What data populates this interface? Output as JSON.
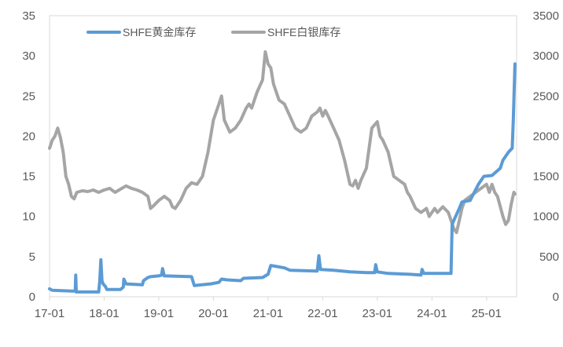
{
  "chart_data": {
    "type": "line",
    "x_ticks": [
      "17-01",
      "18-01",
      "19-01",
      "20-01",
      "21-01",
      "22-01",
      "23-01",
      "24-01",
      "25-01"
    ],
    "y_left": {
      "min": 0,
      "max": 35,
      "step": 5,
      "ticks": [
        "0",
        "5",
        "10",
        "15",
        "20",
        "25",
        "30",
        "35"
      ]
    },
    "y_right": {
      "min": 0,
      "max": 3500,
      "step": 500,
      "ticks": [
        "0",
        "500",
        "1000",
        "1500",
        "2000",
        "2500",
        "3000",
        "3500"
      ]
    },
    "x_range": [
      2017.0,
      2025.55
    ],
    "legend_placement": "top-left",
    "series": [
      {
        "name": "SHFE黄金库存",
        "axis": "left",
        "color": "#5B9BD5",
        "points": [
          [
            2017.0,
            1.0
          ],
          [
            2017.05,
            0.8
          ],
          [
            2017.4,
            0.7
          ],
          [
            2017.47,
            0.7
          ],
          [
            2017.48,
            2.7
          ],
          [
            2017.49,
            0.6
          ],
          [
            2017.9,
            0.6
          ],
          [
            2017.92,
            2.0
          ],
          [
            2017.94,
            4.6
          ],
          [
            2017.96,
            2.0
          ],
          [
            2017.98,
            1.6
          ],
          [
            2018.02,
            1.3
          ],
          [
            2018.05,
            0.9
          ],
          [
            2018.3,
            0.9
          ],
          [
            2018.35,
            1.2
          ],
          [
            2018.36,
            2.2
          ],
          [
            2018.4,
            1.6
          ],
          [
            2018.7,
            1.5
          ],
          [
            2018.72,
            2.0
          ],
          [
            2018.8,
            2.4
          ],
          [
            2018.85,
            2.5
          ],
          [
            2019.0,
            2.6
          ],
          [
            2019.05,
            2.7
          ],
          [
            2019.07,
            3.5
          ],
          [
            2019.1,
            2.6
          ],
          [
            2019.6,
            2.5
          ],
          [
            2019.65,
            1.4
          ],
          [
            2019.95,
            1.6
          ],
          [
            2020.1,
            1.8
          ],
          [
            2020.15,
            2.2
          ],
          [
            2020.25,
            2.1
          ],
          [
            2020.5,
            2.0
          ],
          [
            2020.55,
            2.3
          ],
          [
            2020.9,
            2.4
          ],
          [
            2021.0,
            2.8
          ],
          [
            2021.05,
            3.9
          ],
          [
            2021.3,
            3.6
          ],
          [
            2021.4,
            3.3
          ],
          [
            2021.9,
            3.2
          ],
          [
            2021.93,
            5.1
          ],
          [
            2021.96,
            3.4
          ],
          [
            2022.2,
            3.3
          ],
          [
            2022.5,
            3.1
          ],
          [
            2022.8,
            3.0
          ],
          [
            2022.95,
            3.0
          ],
          [
            2022.97,
            4.0
          ],
          [
            2023.0,
            3.1
          ],
          [
            2023.2,
            2.9
          ],
          [
            2023.6,
            2.8
          ],
          [
            2023.8,
            2.7
          ],
          [
            2023.82,
            3.4
          ],
          [
            2023.85,
            2.9
          ],
          [
            2024.35,
            2.9
          ],
          [
            2024.37,
            9.0
          ],
          [
            2024.42,
            9.8
          ],
          [
            2024.5,
            11.0
          ],
          [
            2024.55,
            11.8
          ],
          [
            2024.7,
            12.0
          ],
          [
            2024.85,
            14.0
          ],
          [
            2024.95,
            15.0
          ],
          [
            2025.1,
            15.1
          ],
          [
            2025.25,
            16.0
          ],
          [
            2025.3,
            17.0
          ],
          [
            2025.4,
            18.0
          ],
          [
            2025.47,
            18.5
          ],
          [
            2025.49,
            22.0
          ],
          [
            2025.52,
            29.0
          ]
        ]
      },
      {
        "name": "SHFE白银库存",
        "axis": "right",
        "color": "#A5A5A5",
        "points": [
          [
            2017.0,
            1850
          ],
          [
            2017.05,
            1950
          ],
          [
            2017.1,
            2000
          ],
          [
            2017.15,
            2100
          ],
          [
            2017.2,
            1980
          ],
          [
            2017.25,
            1800
          ],
          [
            2017.3,
            1500
          ],
          [
            2017.35,
            1400
          ],
          [
            2017.4,
            1250
          ],
          [
            2017.45,
            1220
          ],
          [
            2017.5,
            1300
          ],
          [
            2017.6,
            1320
          ],
          [
            2017.7,
            1310
          ],
          [
            2017.8,
            1330
          ],
          [
            2017.9,
            1300
          ],
          [
            2018.0,
            1330
          ],
          [
            2018.1,
            1350
          ],
          [
            2018.2,
            1300
          ],
          [
            2018.3,
            1340
          ],
          [
            2018.4,
            1380
          ],
          [
            2018.5,
            1350
          ],
          [
            2018.6,
            1330
          ],
          [
            2018.7,
            1300
          ],
          [
            2018.8,
            1250
          ],
          [
            2018.85,
            1100
          ],
          [
            2018.9,
            1130
          ],
          [
            2019.0,
            1200
          ],
          [
            2019.1,
            1250
          ],
          [
            2019.2,
            1200
          ],
          [
            2019.25,
            1120
          ],
          [
            2019.3,
            1100
          ],
          [
            2019.4,
            1200
          ],
          [
            2019.5,
            1350
          ],
          [
            2019.6,
            1420
          ],
          [
            2019.7,
            1400
          ],
          [
            2019.8,
            1500
          ],
          [
            2019.9,
            1800
          ],
          [
            2020.0,
            2200
          ],
          [
            2020.1,
            2400
          ],
          [
            2020.15,
            2500
          ],
          [
            2020.2,
            2200
          ],
          [
            2020.3,
            2050
          ],
          [
            2020.4,
            2100
          ],
          [
            2020.5,
            2200
          ],
          [
            2020.6,
            2350
          ],
          [
            2020.65,
            2400
          ],
          [
            2020.7,
            2350
          ],
          [
            2020.8,
            2550
          ],
          [
            2020.9,
            2700
          ],
          [
            2020.95,
            3050
          ],
          [
            2021.0,
            2900
          ],
          [
            2021.05,
            2850
          ],
          [
            2021.1,
            2650
          ],
          [
            2021.2,
            2450
          ],
          [
            2021.3,
            2400
          ],
          [
            2021.4,
            2250
          ],
          [
            2021.5,
            2100
          ],
          [
            2021.6,
            2050
          ],
          [
            2021.7,
            2100
          ],
          [
            2021.8,
            2250
          ],
          [
            2021.9,
            2300
          ],
          [
            2021.95,
            2350
          ],
          [
            2022.0,
            2250
          ],
          [
            2022.05,
            2320
          ],
          [
            2022.1,
            2250
          ],
          [
            2022.2,
            2100
          ],
          [
            2022.3,
            1950
          ],
          [
            2022.4,
            1700
          ],
          [
            2022.5,
            1400
          ],
          [
            2022.55,
            1380
          ],
          [
            2022.6,
            1450
          ],
          [
            2022.65,
            1350
          ],
          [
            2022.7,
            1450
          ],
          [
            2022.8,
            1600
          ],
          [
            2022.9,
            2100
          ],
          [
            2023.0,
            2180
          ],
          [
            2023.05,
            2000
          ],
          [
            2023.1,
            1950
          ],
          [
            2023.2,
            1800
          ],
          [
            2023.3,
            1500
          ],
          [
            2023.4,
            1450
          ],
          [
            2023.5,
            1400
          ],
          [
            2023.55,
            1300
          ],
          [
            2023.6,
            1250
          ],
          [
            2023.7,
            1100
          ],
          [
            2023.8,
            1050
          ],
          [
            2023.9,
            1100
          ],
          [
            2023.95,
            1000
          ],
          [
            2024.0,
            1050
          ],
          [
            2024.05,
            1100
          ],
          [
            2024.1,
            1050
          ],
          [
            2024.2,
            1120
          ],
          [
            2024.3,
            1050
          ],
          [
            2024.4,
            850
          ],
          [
            2024.45,
            800
          ],
          [
            2024.5,
            950
          ],
          [
            2024.55,
            1100
          ],
          [
            2024.6,
            1200
          ],
          [
            2024.7,
            1250
          ],
          [
            2024.8,
            1300
          ],
          [
            2024.9,
            1350
          ],
          [
            2025.0,
            1400
          ],
          [
            2025.05,
            1300
          ],
          [
            2025.1,
            1400
          ],
          [
            2025.15,
            1300
          ],
          [
            2025.2,
            1250
          ],
          [
            2025.3,
            1000
          ],
          [
            2025.35,
            900
          ],
          [
            2025.4,
            950
          ],
          [
            2025.45,
            1150
          ],
          [
            2025.5,
            1300
          ],
          [
            2025.52,
            1280
          ]
        ]
      }
    ]
  }
}
